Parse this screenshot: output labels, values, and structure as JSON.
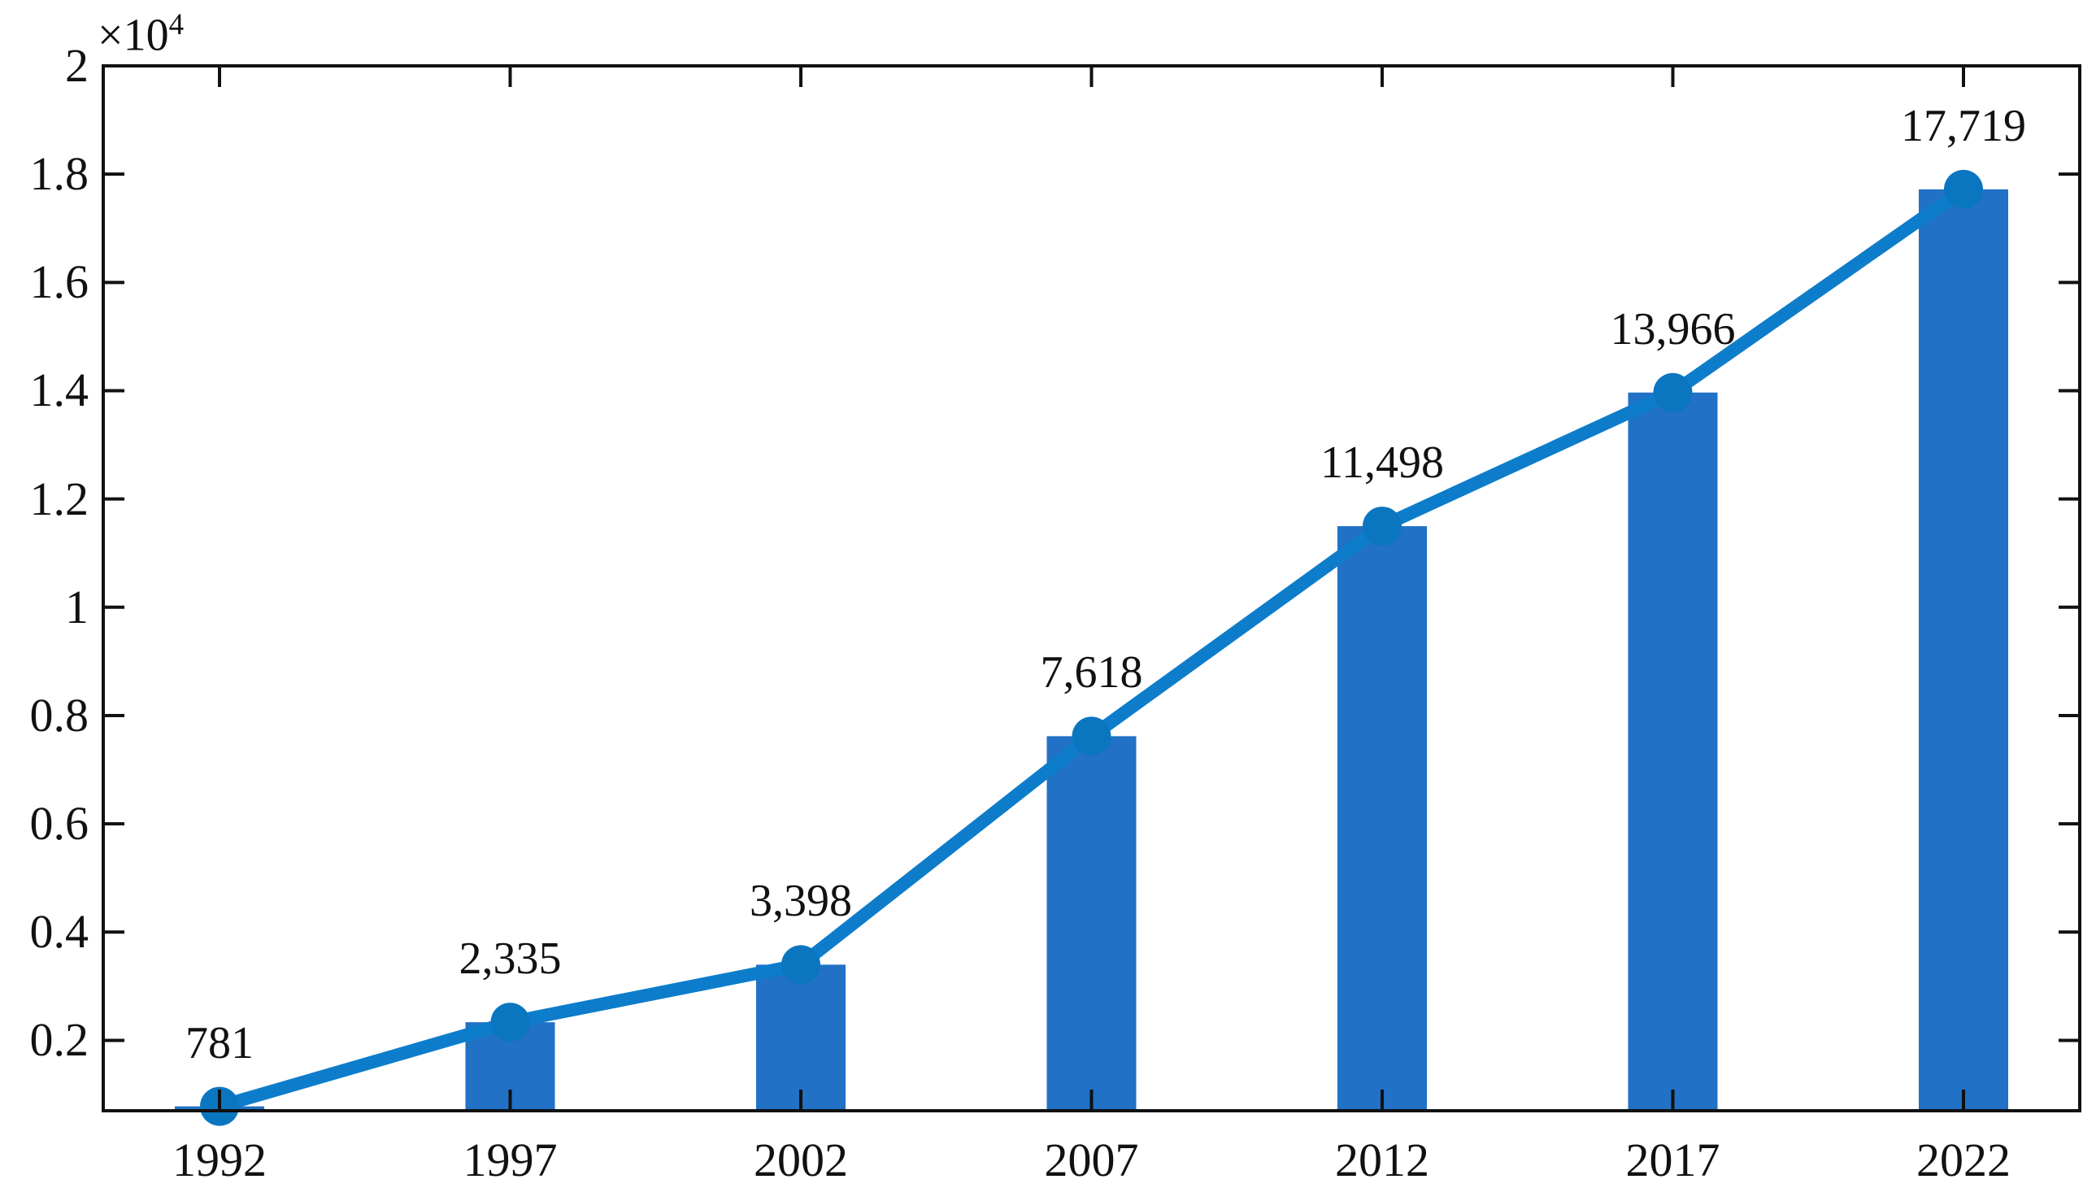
{
  "chart_data": {
    "type": "bar",
    "subtype": "bar-with-line-overlay",
    "title": "",
    "xlabel": "",
    "ylabel": "",
    "categories": [
      "1992",
      "1997",
      "2002",
      "2007",
      "2012",
      "2017",
      "2022"
    ],
    "x_years": [
      1992,
      1997,
      2002,
      2007,
      2012,
      2017,
      2022
    ],
    "series": [
      {
        "name": "bars",
        "type": "bar",
        "values": [
          781,
          2335,
          3398,
          7618,
          11498,
          13966,
          17719
        ]
      },
      {
        "name": "trend-line",
        "type": "line",
        "marker": "filled-circle",
        "values": [
          781,
          2335,
          3398,
          7618,
          11498,
          13966,
          17719
        ]
      }
    ],
    "values": [
      781,
      2335,
      3398,
      7618,
      11498,
      13966,
      17719
    ],
    "value_labels": [
      "781",
      "2,335",
      "3,398",
      "7,618",
      "11,498",
      "13,966",
      "17,719"
    ],
    "xlim": [
      1990,
      2024
    ],
    "ylim": [
      700,
      20000
    ],
    "ytick_values": [
      2000,
      4000,
      6000,
      8000,
      10000,
      12000,
      14000,
      16000,
      18000,
      20000
    ],
    "ytick_labels": [
      "0.2",
      "0.4",
      "0.6",
      "0.8",
      "1",
      "1.2",
      "1.4",
      "1.6",
      "1.8",
      "2"
    ],
    "y_exponent": {
      "prefix": "×10",
      "exp": "4"
    },
    "grid": false,
    "legend": "none",
    "tick_direction": "in",
    "box": true,
    "colors": {
      "bar": "#2171C6",
      "line": "#0D7DCB",
      "marker": "#0B76C0",
      "axis": "#111111",
      "text": "#111111",
      "background": "#FFFFFF"
    }
  }
}
